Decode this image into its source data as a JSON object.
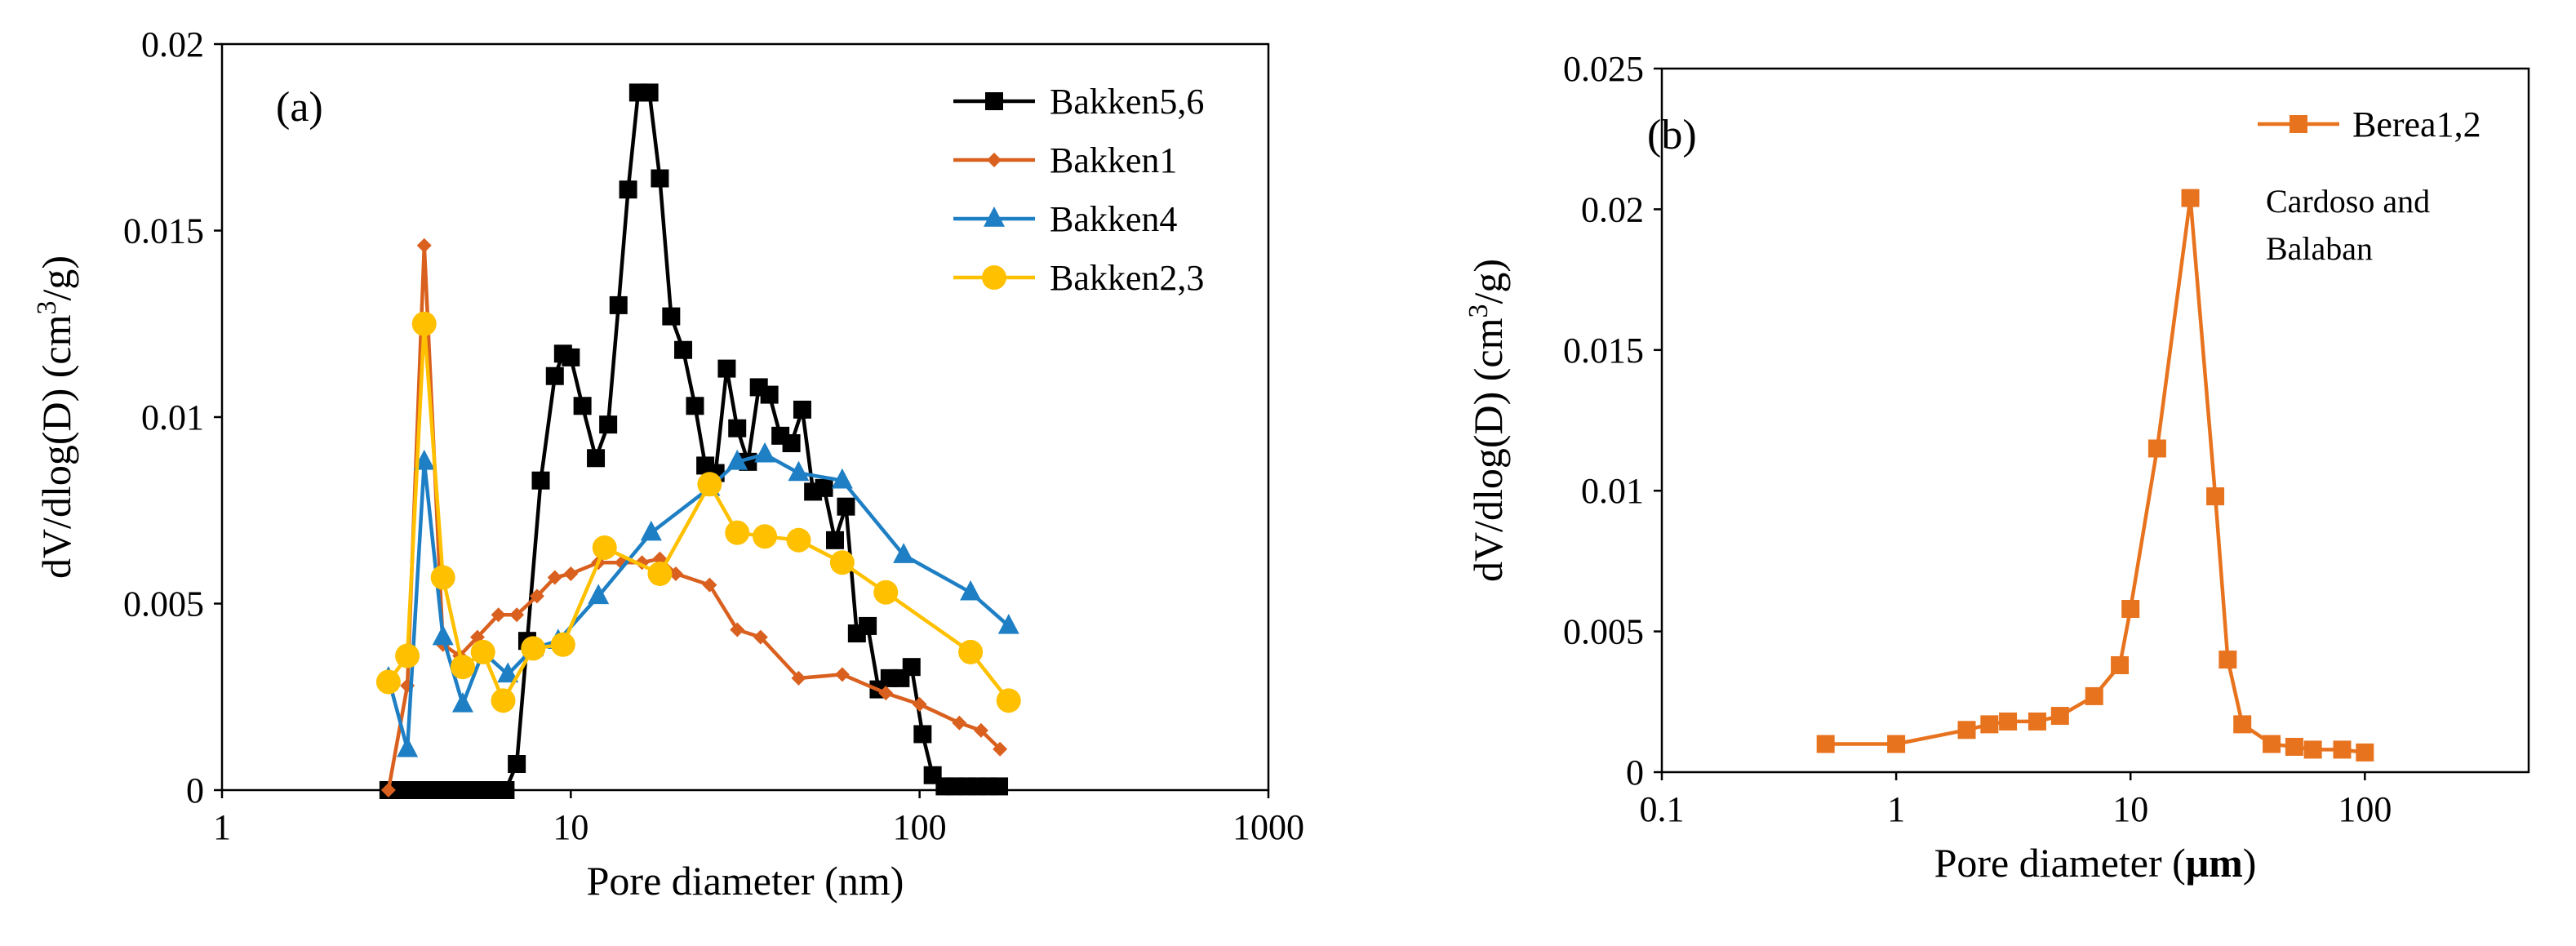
{
  "chart_data": [
    {
      "panel": "a",
      "type": "line",
      "panel_label": "(a)",
      "xlabel": "Pore diameter (nm)",
      "ylabel_parts": {
        "prefix": "dV/dlog(D) (cm",
        "sup": "3",
        "suffix": "/g)"
      },
      "x_scale": "log",
      "xlim": [
        1,
        1000
      ],
      "ylim": [
        0,
        0.02
      ],
      "x_ticks": [
        1,
        10,
        100,
        1000
      ],
      "x_tick_labels": [
        "1",
        "10",
        "100",
        "1000"
      ],
      "y_ticks": [
        0,
        0.005,
        0.01,
        0.015,
        0.02
      ],
      "y_tick_labels": [
        "0",
        "0.005",
        "0.01",
        "0.015",
        "0.02"
      ],
      "legend_position": "top-right",
      "series": [
        {
          "name": "Bakken5,6",
          "color": "#000000",
          "marker": "square",
          "x": [
            3.0,
            3.2,
            3.4,
            3.6,
            3.8,
            4.0,
            4.2,
            4.4,
            4.7,
            5.0,
            5.3,
            5.6,
            5.9,
            6.2,
            6.5,
            7.0,
            7.5,
            8.2,
            9.0,
            9.5,
            10.0,
            10.8,
            11.8,
            12.8,
            13.7,
            14.6,
            15.6,
            16.8,
            18.0,
            19.4,
            21.0,
            22.7,
            24.3,
            26.0,
            28.0,
            30.0,
            32.2,
            34.6,
            37.1,
            39.9,
            42.9,
            46.1,
            49.5,
            53.2,
            57.2,
            61.5,
            66.1,
            71.0,
            76.3,
            82.0,
            88.2,
            94.8,
            102,
            109,
            118,
            126,
            136,
            146,
            157,
            169
          ],
          "y": [
            0,
            0,
            0,
            0,
            0,
            0,
            0,
            0,
            0,
            0,
            0,
            0,
            0,
            0,
            0,
            0.0007,
            0.004,
            0.0083,
            0.0111,
            0.0117,
            0.0116,
            0.0103,
            0.0089,
            0.0098,
            0.013,
            0.0161,
            0.0187,
            0.0187,
            0.0164,
            0.0127,
            0.0118,
            0.0103,
            0.0087,
            0.0085,
            0.0113,
            0.0097,
            0.0088,
            0.0108,
            0.0106,
            0.0095,
            0.0093,
            0.0102,
            0.008,
            0.0081,
            0.0067,
            0.0076,
            0.0042,
            0.0044,
            0.0027,
            0.003,
            0.003,
            0.0033,
            0.0015,
            0.0004,
            0.0001,
            0.0001,
            0.0001,
            0.0001,
            0.0001,
            0.0001
          ]
        },
        {
          "name": "Bakken1",
          "color": "#D9601E",
          "marker": "diamond",
          "x": [
            3.0,
            3.4,
            3.8,
            4.3,
            4.8,
            5.4,
            6.2,
            7.0,
            8.0,
            9.0,
            10.0,
            12.0,
            14.0,
            16.0,
            18.0,
            20.0,
            25.0,
            30.0,
            35.0,
            45.0,
            60.0,
            80.0,
            100.0,
            130.0,
            150.0,
            170.0
          ],
          "y": [
            0,
            0.0028,
            0.0146,
            0.0039,
            0.0036,
            0.0041,
            0.0047,
            0.0047,
            0.0052,
            0.0057,
            0.0058,
            0.0061,
            0.0061,
            0.0061,
            0.0062,
            0.0058,
            0.0055,
            0.0043,
            0.0041,
            0.003,
            0.0031,
            0.0026,
            0.0023,
            0.0018,
            0.0016,
            0.0011
          ]
        },
        {
          "name": "Bakken4",
          "color": "#1E7FC4",
          "marker": "triangle",
          "x": [
            3.0,
            3.4,
            3.8,
            4.3,
            4.9,
            5.6,
            6.6,
            7.8,
            9.2,
            12.0,
            17.0,
            25.0,
            30.0,
            36.0,
            45.0,
            60.0,
            90.0,
            140.0,
            180.0
          ],
          "y": [
            0.003,
            0.0011,
            0.0088,
            0.0041,
            0.0023,
            0.0037,
            0.0031,
            0.0038,
            0.004,
            0.0052,
            0.0069,
            0.0081,
            0.0088,
            0.009,
            0.0085,
            0.0083,
            0.0063,
            0.0053,
            0.0044
          ]
        },
        {
          "name": "Bakken2,3",
          "color": "#FFC000",
          "marker": "circle",
          "x": [
            3.0,
            3.4,
            3.8,
            4.3,
            4.9,
            5.6,
            6.4,
            7.8,
            9.5,
            12.5,
            18.0,
            25.0,
            30.0,
            36.0,
            45.0,
            60.0,
            80.0,
            140.0,
            180.0
          ],
          "y": [
            0.0029,
            0.0036,
            0.0125,
            0.0057,
            0.0033,
            0.0037,
            0.0024,
            0.0038,
            0.0039,
            0.0065,
            0.0058,
            0.0082,
            0.0069,
            0.0068,
            0.0067,
            0.0061,
            0.0053,
            0.0037,
            0.0024
          ]
        }
      ]
    },
    {
      "panel": "b",
      "type": "line",
      "panel_label": "(b)",
      "xlabel_parts": {
        "prefix": "Pore diameter (",
        "bold": "μm",
        "suffix": ")"
      },
      "ylabel_parts": {
        "prefix": "dV/dlog(D) (cm",
        "sup": "3",
        "suffix": "/g)"
      },
      "x_scale": "log",
      "xlim": [
        0.1,
        500
      ],
      "ylim": [
        0,
        0.025
      ],
      "x_ticks": [
        0.1,
        1,
        10,
        100
      ],
      "x_tick_labels": [
        "0.1",
        "1",
        "10",
        "100"
      ],
      "y_ticks": [
        0,
        0.005,
        0.01,
        0.015,
        0.02,
        0.025
      ],
      "y_tick_labels": [
        "0",
        "0.005",
        "0.01",
        "0.015",
        "0.02",
        "0.025"
      ],
      "legend_position": "top-right",
      "annotation_lines": [
        "Cardoso and",
        "Balaban"
      ],
      "series": [
        {
          "name": "Berea1,2",
          "color": "#E8731E",
          "marker": "square",
          "x": [
            0.5,
            1.0,
            2.0,
            2.5,
            3.0,
            4.0,
            5.0,
            7.0,
            9.0,
            10.0,
            13.0,
            18.0,
            23.0,
            26.0,
            30.0,
            40.0,
            50.0,
            60.0,
            80.0,
            100.0
          ],
          "y": [
            0.001,
            0.001,
            0.0015,
            0.0017,
            0.0018,
            0.0018,
            0.002,
            0.0027,
            0.0038,
            0.0058,
            0.0115,
            0.0204,
            0.0098,
            0.004,
            0.0017,
            0.001,
            0.0009,
            0.0008,
            0.0008,
            0.0007
          ]
        }
      ]
    }
  ]
}
